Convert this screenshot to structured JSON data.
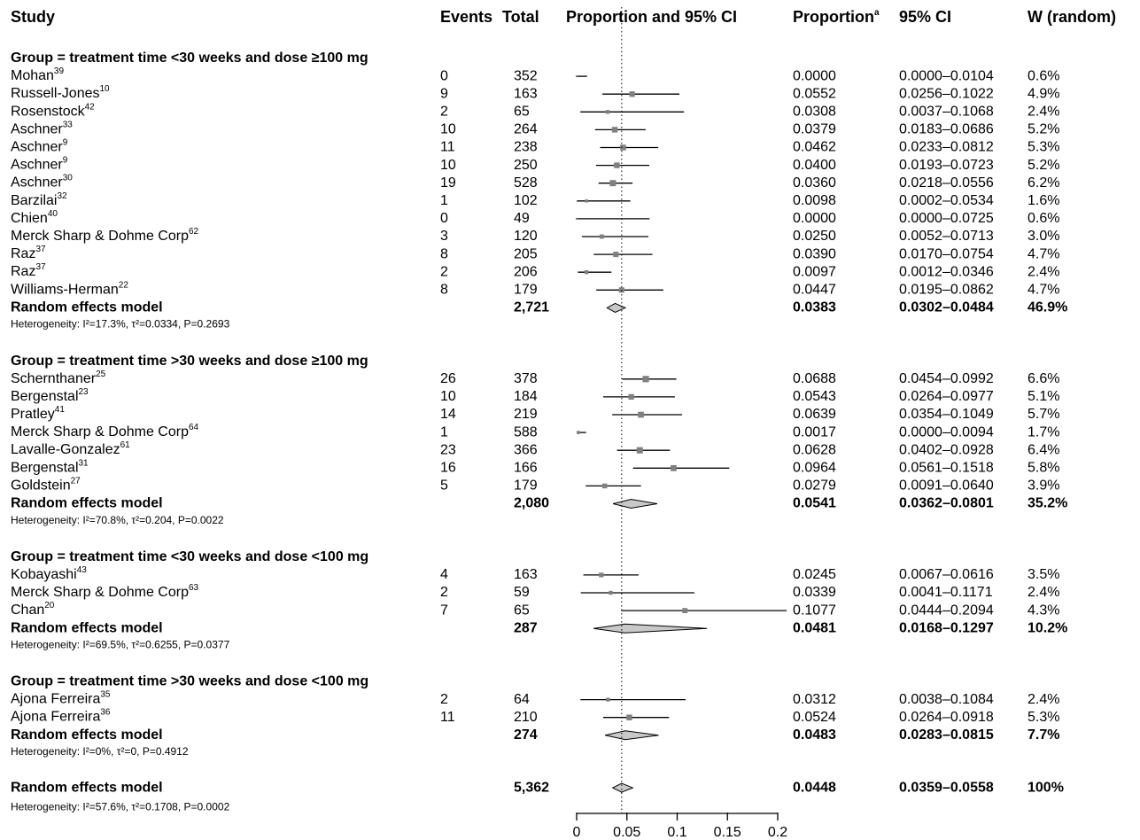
{
  "chart_data": {
    "type": "forest",
    "headers": {
      "study": "Study",
      "events": "Events",
      "total": "Total",
      "plot": "Proportion and 95% CI",
      "proportion": "Proportion",
      "proportion_note": "a",
      "ci": "95% CI",
      "weight": "W (random)"
    },
    "xlim": [
      0,
      0.2
    ],
    "xticks": [
      0,
      0.05,
      0.1,
      0.15,
      0.2
    ],
    "groups": [
      {
        "title": "Group = treatment time <30 weeks and dose ≥100 mg",
        "studies": [
          {
            "name": "Mohan",
            "ref": "39",
            "events": 0,
            "total": 352,
            "p": 0,
            "p_label": "0.0000",
            "ci": [
              0,
              0.0104
            ],
            "ci_label": "0.0000–0.0104",
            "w": 0.6,
            "w_label": "0.6%"
          },
          {
            "name": "Russell-Jones",
            "ref": "10",
            "events": 9,
            "total": 163,
            "p": 0.0552,
            "p_label": "0.0552",
            "ci": [
              0.0256,
              0.1022
            ],
            "ci_label": "0.0256–0.1022",
            "w": 4.9,
            "w_label": "4.9%"
          },
          {
            "name": "Rosenstock",
            "ref": "42",
            "events": 2,
            "total": 65,
            "p": 0.0308,
            "p_label": "0.0308",
            "ci": [
              0.0037,
              0.1068
            ],
            "ci_label": "0.0037–0.1068",
            "w": 2.4,
            "w_label": "2.4%"
          },
          {
            "name": "Aschner",
            "ref": "33",
            "events": 10,
            "total": 264,
            "p": 0.0379,
            "p_label": "0.0379",
            "ci": [
              0.0183,
              0.0686
            ],
            "ci_label": "0.0183–0.0686",
            "w": 5.2,
            "w_label": "5.2%"
          },
          {
            "name": "Aschner",
            "ref": "9",
            "events": 11,
            "total": 238,
            "p": 0.0462,
            "p_label": "0.0462",
            "ci": [
              0.0233,
              0.0812
            ],
            "ci_label": "0.0233–0.0812",
            "w": 5.3,
            "w_label": "5.3%"
          },
          {
            "name": "Aschner",
            "ref": "9",
            "events": 10,
            "total": 250,
            "p": 0.04,
            "p_label": "0.0400",
            "ci": [
              0.0193,
              0.0723
            ],
            "ci_label": "0.0193–0.0723",
            "w": 5.2,
            "w_label": "5.2%"
          },
          {
            "name": "Aschner",
            "ref": "30",
            "events": 19,
            "total": 528,
            "p": 0.036,
            "p_label": "0.0360",
            "ci": [
              0.0218,
              0.0556
            ],
            "ci_label": "0.0218–0.0556",
            "w": 6.2,
            "w_label": "6.2%"
          },
          {
            "name": "Barzilai",
            "ref": "32",
            "events": 1,
            "total": 102,
            "p": 0.0098,
            "p_label": "0.0098",
            "ci": [
              0.0002,
              0.0534
            ],
            "ci_label": "0.0002–0.0534",
            "w": 1.6,
            "w_label": "1.6%"
          },
          {
            "name": "Chien",
            "ref": "40",
            "events": 0,
            "total": 49,
            "p": 0,
            "p_label": "0.0000",
            "ci": [
              0,
              0.0725
            ],
            "ci_label": "0.0000–0.0725",
            "w": 0.6,
            "w_label": "0.6%"
          },
          {
            "name": "Merck Sharp & Dohme Corp",
            "ref": "62",
            "events": 3,
            "total": 120,
            "p": 0.025,
            "p_label": "0.0250",
            "ci": [
              0.0052,
              0.0713
            ],
            "ci_label": "0.0052–0.0713",
            "w": 3,
            "w_label": "3.0%"
          },
          {
            "name": "Raz",
            "ref": "37",
            "events": 8,
            "total": 205,
            "p": 0.039,
            "p_label": "0.0390",
            "ci": [
              0.017,
              0.0754
            ],
            "ci_label": "0.0170–0.0754",
            "w": 4.7,
            "w_label": "4.7%"
          },
          {
            "name": "Raz",
            "ref": "37",
            "events": 2,
            "total": 206,
            "p": 0.0097,
            "p_label": "0.0097",
            "ci": [
              0.0012,
              0.0346
            ],
            "ci_label": "0.0012–0.0346",
            "w": 2.4,
            "w_label": "2.4%"
          },
          {
            "name": "Williams-Herman",
            "ref": "22",
            "events": 8,
            "total": 179,
            "p": 0.0447,
            "p_label": "0.0447",
            "ci": [
              0.0195,
              0.0862
            ],
            "ci_label": "0.0195–0.0862",
            "w": 4.7,
            "w_label": "4.7%"
          }
        ],
        "summary": {
          "name": "Random effects model",
          "total": 2721,
          "total_label": "2,721",
          "p": 0.0383,
          "p_label": "0.0383",
          "ci": [
            0.0302,
            0.0484
          ],
          "ci_label": "0.0302–0.0484",
          "w": 46.9,
          "w_label": "46.9%"
        },
        "heterogeneity": "Heterogeneity: I²=17.3%, τ²=0.0334, P=0.2693"
      },
      {
        "title": "Group = treatment time >30 weeks and dose ≥100 mg",
        "studies": [
          {
            "name": "Schernthaner",
            "ref": "25",
            "events": 26,
            "total": 378,
            "p": 0.0688,
            "p_label": "0.0688",
            "ci": [
              0.0454,
              0.0992
            ],
            "ci_label": "0.0454–0.0992",
            "w": 6.6,
            "w_label": "6.6%"
          },
          {
            "name": "Bergenstal",
            "ref": "23",
            "events": 10,
            "total": 184,
            "p": 0.0543,
            "p_label": "0.0543",
            "ci": [
              0.0264,
              0.0977
            ],
            "ci_label": "0.0264–0.0977",
            "w": 5.1,
            "w_label": "5.1%"
          },
          {
            "name": "Pratley",
            "ref": "41",
            "events": 14,
            "total": 219,
            "p": 0.0639,
            "p_label": "0.0639",
            "ci": [
              0.0354,
              0.1049
            ],
            "ci_label": "0.0354–0.1049",
            "w": 5.7,
            "w_label": "5.7%"
          },
          {
            "name": "Merck Sharp & Dohme Corp",
            "ref": "64",
            "events": 1,
            "total": 588,
            "p": 0.0017,
            "p_label": "0.0017",
            "ci": [
              0,
              0.0094
            ],
            "ci_label": "0.0000–0.0094",
            "w": 1.7,
            "w_label": "1.7%"
          },
          {
            "name": "Lavalle-Gonzalez",
            "ref": "61",
            "events": 23,
            "total": 366,
            "p": 0.0628,
            "p_label": "0.0628",
            "ci": [
              0.0402,
              0.0928
            ],
            "ci_label": "0.0402–0.0928",
            "w": 6.4,
            "w_label": "6.4%"
          },
          {
            "name": "Bergenstal",
            "ref": "31",
            "events": 16,
            "total": 166,
            "p": 0.0964,
            "p_label": "0.0964",
            "ci": [
              0.0561,
              0.1518
            ],
            "ci_label": "0.0561–0.1518",
            "w": 5.8,
            "w_label": "5.8%"
          },
          {
            "name": "Goldstein",
            "ref": "27",
            "events": 5,
            "total": 179,
            "p": 0.0279,
            "p_label": "0.0279",
            "ci": [
              0.0091,
              0.064
            ],
            "ci_label": "0.0091–0.0640",
            "w": 3.9,
            "w_label": "3.9%"
          }
        ],
        "summary": {
          "name": "Random effects model",
          "total": 2080,
          "total_label": "2,080",
          "p": 0.0541,
          "p_label": "0.0541",
          "ci": [
            0.0362,
            0.0801
          ],
          "ci_label": "0.0362–0.0801",
          "w": 35.2,
          "w_label": "35.2%"
        },
        "heterogeneity": "Heterogeneity: I²=70.8%, τ²=0.204, P=0.0022"
      },
      {
        "title": "Group = treatment time <30 weeks and dose <100 mg",
        "studies": [
          {
            "name": "Kobayashi",
            "ref": "43",
            "events": 4,
            "total": 163,
            "p": 0.0245,
            "p_label": "0.0245",
            "ci": [
              0.0067,
              0.0616
            ],
            "ci_label": "0.0067–0.0616",
            "w": 3.5,
            "w_label": "3.5%"
          },
          {
            "name": "Merck Sharp & Dohme Corp",
            "ref": "63",
            "events": 2,
            "total": 59,
            "p": 0.0339,
            "p_label": "0.0339",
            "ci": [
              0.0041,
              0.1171
            ],
            "ci_label": "0.0041–0.1171",
            "w": 2.4,
            "w_label": "2.4%"
          },
          {
            "name": "Chan",
            "ref": "20",
            "events": 7,
            "total": 65,
            "p": 0.1077,
            "p_label": "0.1077",
            "ci": [
              0.0444,
              0.2094
            ],
            "ci_label": "0.0444–0.2094",
            "w": 4.3,
            "w_label": "4.3%"
          }
        ],
        "summary": {
          "name": "Random effects model",
          "total": 287,
          "total_label": "287",
          "p": 0.0481,
          "p_label": "0.0481",
          "ci": [
            0.0168,
            0.1297
          ],
          "ci_label": "0.0168–0.1297",
          "w": 10.2,
          "w_label": "10.2%"
        },
        "heterogeneity": "Heterogeneity: I²=69.5%, τ²=0.6255, P=0.0377"
      },
      {
        "title": "Group = treatment time >30 weeks and dose <100 mg",
        "studies": [
          {
            "name": "Ajona Ferreira",
            "ref": "35",
            "events": 2,
            "total": 64,
            "p": 0.0312,
            "p_label": "0.0312",
            "ci": [
              0.0038,
              0.1084
            ],
            "ci_label": "0.0038–0.1084",
            "w": 2.4,
            "w_label": "2.4%"
          },
          {
            "name": "Ajona Ferreira",
            "ref": "36",
            "events": 11,
            "total": 210,
            "p": 0.0524,
            "p_label": "0.0524",
            "ci": [
              0.0264,
              0.0918
            ],
            "ci_label": "0.0264–0.0918",
            "w": 5.3,
            "w_label": "5.3%"
          }
        ],
        "summary": {
          "name": "Random effects model",
          "total": 274,
          "total_label": "274",
          "p": 0.0483,
          "p_label": "0.0483",
          "ci": [
            0.0283,
            0.0815
          ],
          "ci_label": "0.0283–0.0815",
          "w": 7.7,
          "w_label": "7.7%"
        },
        "heterogeneity": "Heterogeneity: I²=0%, τ²=0, P=0.4912"
      }
    ],
    "overall": {
      "name": "Random effects model",
      "total": 5362,
      "total_label": "5,362",
      "p": 0.0448,
      "p_label": "0.0448",
      "ci": [
        0.0359,
        0.0558
      ],
      "ci_label": "0.0359–0.0558",
      "w": 100,
      "w_label": "100%"
    },
    "overall_heterogeneity": "Heterogeneity: I²=57.6%, τ²=0.1708, P=0.0002"
  }
}
